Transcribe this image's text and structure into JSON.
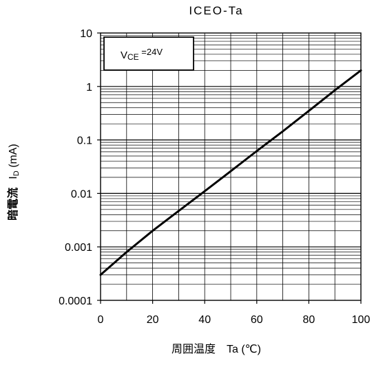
{
  "chart_data": {
    "type": "line",
    "title": "ICEO-Ta",
    "xlabel": "周囲温度　Ta (℃)",
    "ylabel_main": "暗電流",
    "ylabel_symbol_main": "I",
    "ylabel_symbol_sub": "D",
    "ylabel_unit": " (mA)",
    "y_scale": "log",
    "xlim": [
      0,
      100
    ],
    "ylim": [
      0.0001,
      10
    ],
    "grid": true,
    "x_ticks": [
      0,
      20,
      40,
      60,
      80,
      100
    ],
    "x_tick_labels": [
      "0",
      "20",
      "40",
      "60",
      "80",
      "100"
    ],
    "y_ticks": [
      0.0001,
      0.001,
      0.01,
      0.1,
      1,
      10
    ],
    "y_tick_labels": [
      "0.0001",
      "0.001",
      "0.01",
      "0.1",
      "1",
      "10"
    ],
    "annotation": {
      "main": "V",
      "sub": "CE",
      "rest": " =24V"
    },
    "series": [
      {
        "x": [
          0,
          10,
          20,
          30,
          40,
          50,
          60,
          70,
          80,
          90,
          100
        ],
        "y": [
          0.0003,
          0.0008,
          0.002,
          0.0047,
          0.011,
          0.026,
          0.062,
          0.145,
          0.35,
          0.85,
          2.0
        ]
      }
    ]
  }
}
